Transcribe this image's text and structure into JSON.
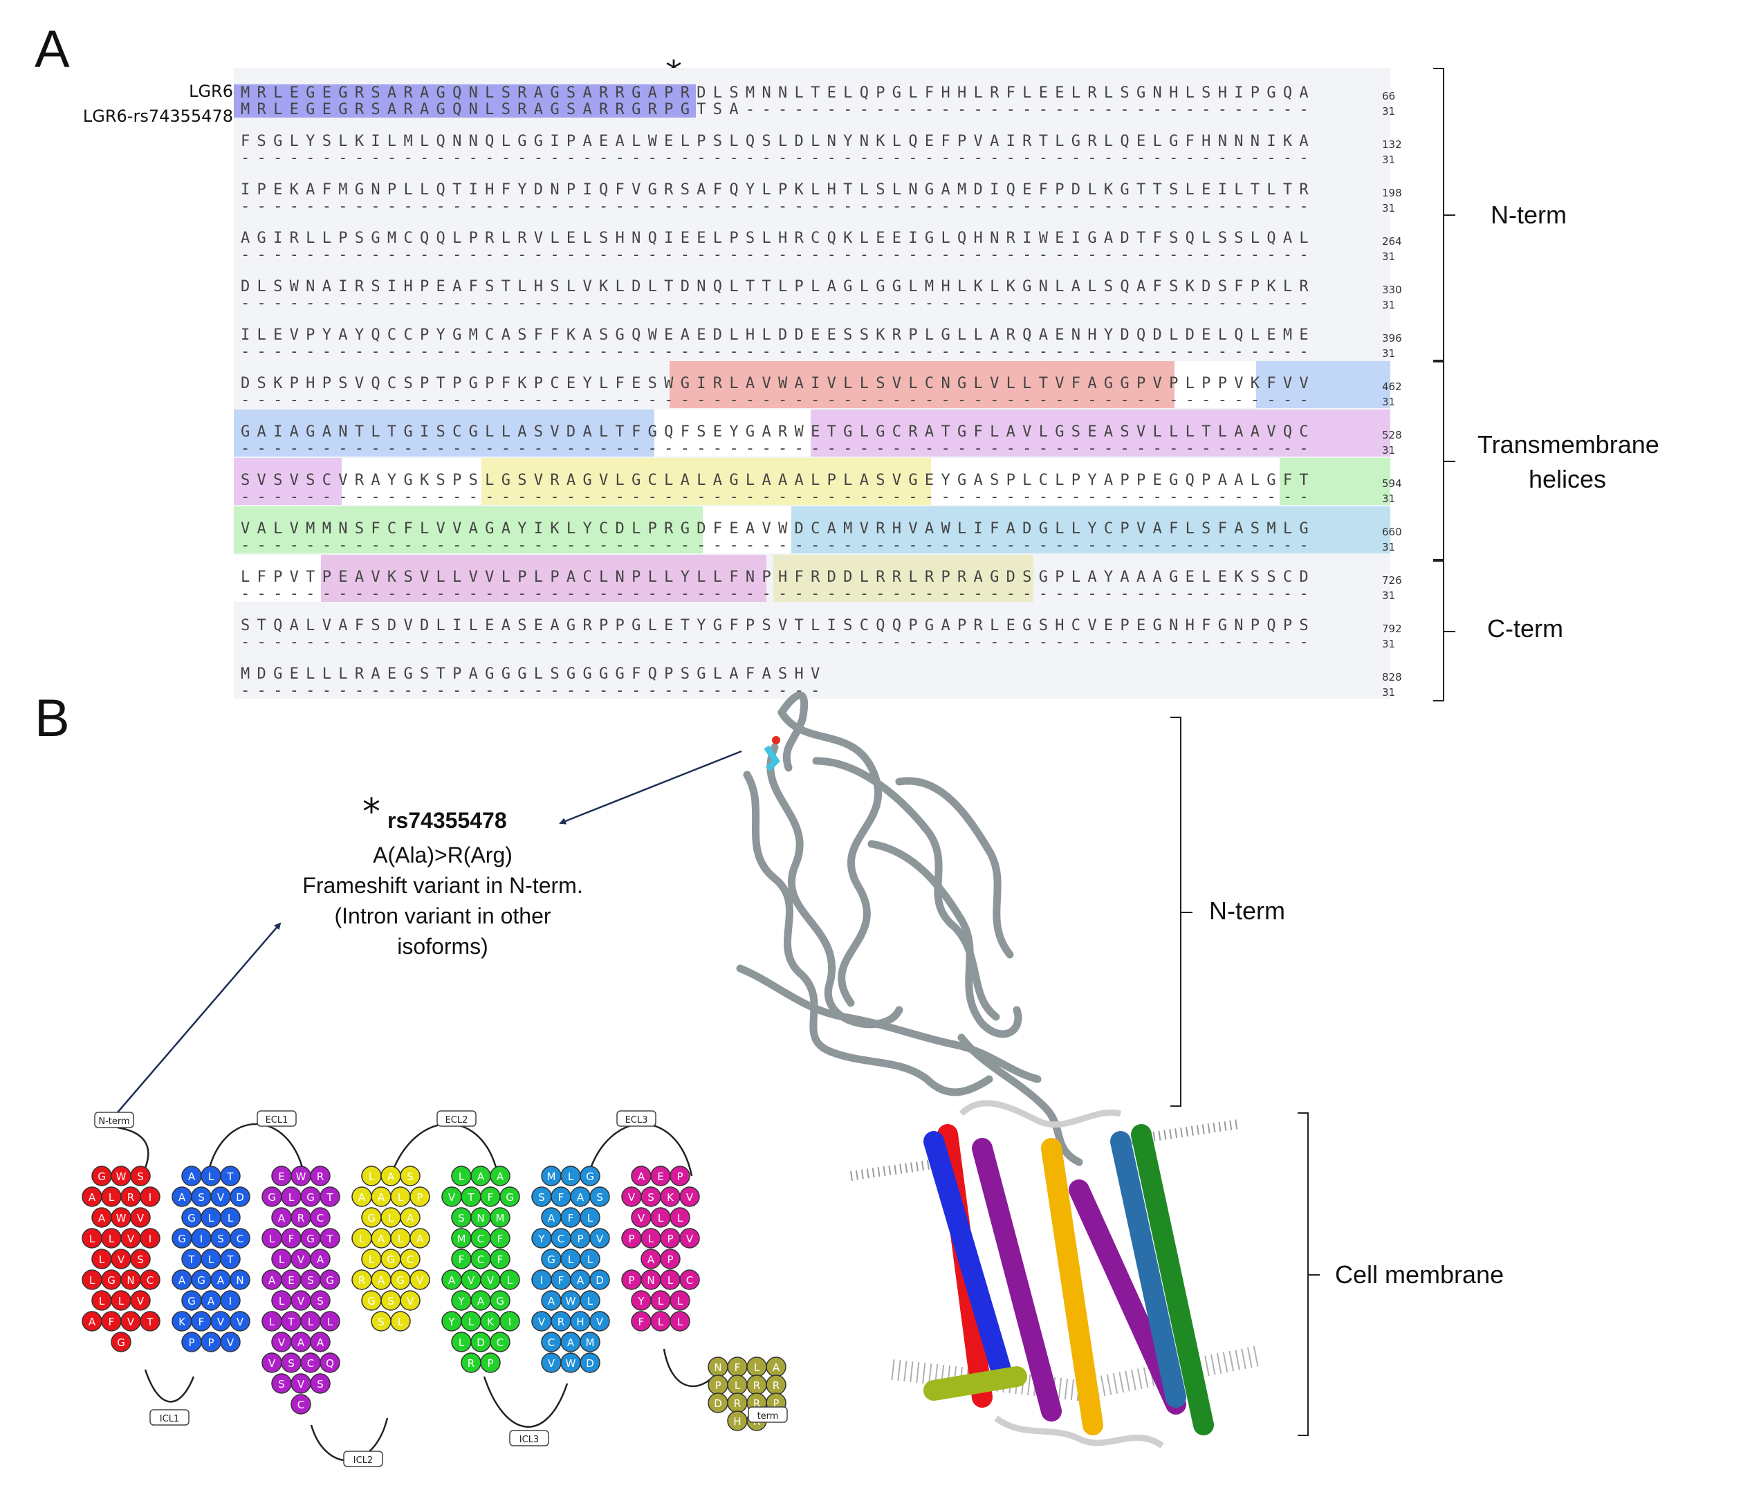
{
  "panels": {
    "a": "A",
    "b": "B"
  },
  "labels": {
    "seq1": "LGR6",
    "seq2": "LGR6-rs74355478",
    "star": "*",
    "nterm": "N-term",
    "tm": "Transmembrane",
    "tm2": "helices",
    "cterm": "C-term",
    "nterm_b": "N-term",
    "membrane": "Cell membrane"
  },
  "alignment": [
    {
      "seq": "MRLEGEGRSARAGQNLSRAGSARRGAPRDLSMNNLTELQPGLFHHLRFLEELRLSGNHLSHIPGQA",
      "sub": "MRLEGEGRSARAGQNLSRAGSARRGRPGTSA-----------------------------------",
      "n1": "66",
      "n2": "31"
    },
    {
      "seq": "FSGLYSLKILMLQNNQLGGIPAEALWELPSLQSLDLNYNKLQEFPVAIRTLGRLQELGFHNNNIKA",
      "sub": "------------------------------------------------------------------",
      "n1": "132",
      "n2": "31"
    },
    {
      "seq": "IPEKAFMGNPLLQTIHFYDNPIQFVGRSAFQYLPKLHTLSLNGAMDIQEFPDLKGTTSLEILTLTR",
      "sub": "------------------------------------------------------------------",
      "n1": "198",
      "n2": "31"
    },
    {
      "seq": "AGIRLLPSGMCQQLPRLRVLELSHNQIEELPSLHRCQKLEEIGLQHNRIWEIGADTFSQLSSLQAL",
      "sub": "------------------------------------------------------------------",
      "n1": "264",
      "n2": "31"
    },
    {
      "seq": "DLSWNAIRSIHPEAFSTLHSLVKLDLTDNQLTTLPLAGLGGLMHLKLKGNLALSQAFSKDSFPKLR",
      "sub": "------------------------------------------------------------------",
      "n1": "330",
      "n2": "31"
    },
    {
      "seq": "ILEVPYAYQCCPYGMCASFFKASGQWEAEDLHLDDEESSKRPLGLLARQAENHYDQDLDELQLEME",
      "sub": "------------------------------------------------------------------",
      "n1": "396",
      "n2": "31"
    },
    {
      "seq": "DSKPHPSVQCSPTPGPFKPCEYLFESWGIRLAVWAIVLLSVLCNGLVLLTVFAGGPVPLPPVKFVV",
      "sub": "------------------------------------------------------------------",
      "n1": "462",
      "n2": "31"
    },
    {
      "seq": "GAIAGANTLTGISCGLLASVDALTFGQFSEYGARWETGLGCRATGFLAVLGSEASVLLLTLAAVQC",
      "sub": "------------------------------------------------------------------",
      "n1": "528",
      "n2": "31"
    },
    {
      "seq": "SVSVSCVRAYGKSPSLGSVRAGVLGCLALAGLAAALPLASVGEYGASPLCLPYAPPEGQPAALGFT",
      "sub": "------------------------------------------------------------------",
      "n1": "594",
      "n2": "31"
    },
    {
      "seq": "VALVMMNSFCFLVVAGAYIKLYCDLPRGDFEAVWDCAMVRHVAWLIFADGLLYCPVAFLSFASMLG",
      "sub": "------------------------------------------------------------------",
      "n1": "660",
      "n2": "31"
    },
    {
      "seq": "LFPVTPEAVKSVLLVVLPLPACLNPLLYLLFNPHFRDDLRRLRPRAGDSGPLAYAAAGELEKSSCD",
      "sub": "------------------------------------------------------------------",
      "n1": "726",
      "n2": "31"
    },
    {
      "seq": "STQALVAFSDVDLILEASEAGRPPGLETYGFPSVTLISCQQPGAPRLEGSHCVEPEGNHFGNPQPS",
      "sub": "------------------------------------------------------------------",
      "n1": "792",
      "n2": "31"
    },
    {
      "seq": "MDGELLLRAEGSTPAGGGLSGGGGFQPSGLAFASHV",
      "sub": "------------------------------------",
      "n1": "828",
      "n2": "31"
    }
  ],
  "snp": {
    "star": "*",
    "id": "rs74355478",
    "line1": "A(Ala)>R(Arg)",
    "line2": "Frameshift variant in N-term.",
    "line3": "(Intron variant in other",
    "line4": "isoforms)"
  },
  "snake": {
    "nterm": "N-term",
    "ecl": [
      "ECL1",
      "ECL2",
      "ECL3"
    ],
    "icl": [
      "ICL1",
      "ICL2",
      "ICL3"
    ],
    "cterm": "term",
    "helices": [
      {
        "color": "#e8141a",
        "rows": [
          "GWS",
          "ALRI",
          "AWV",
          "LLVI",
          "LVS",
          "LGNC",
          "LLV",
          "AFVT",
          "G"
        ]
      },
      {
        "color": "#1f5fe8",
        "rows": [
          "ALT",
          "ASVD",
          "GLL",
          "GISC",
          "TLT",
          "AGAN",
          "GAI",
          "KFVV",
          "PPV"
        ]
      },
      {
        "color": "#b020c8",
        "rows": [
          "EWR",
          "GLGT",
          "ARC",
          "LFGT",
          "LVA",
          "AESG",
          "LVS",
          "LTLL",
          "VAA",
          "VSCQ",
          "SVS",
          "C"
        ]
      },
      {
        "color": "#e8e010",
        "rows": [
          "LAS",
          "AALP",
          "GLA",
          "LALA",
          "LGC",
          "RAGV",
          "GSV",
          "SL"
        ]
      },
      {
        "color": "#22d22a",
        "rows": [
          "LAA",
          "VTFG",
          "SNM",
          "MCF",
          "FCF",
          "AVVL",
          "YAG",
          "YLKI",
          "LDC",
          "RP"
        ]
      },
      {
        "color": "#1e8fd8",
        "rows": [
          "MLG",
          "SFAS",
          "AFL",
          "YCPV",
          "GLL",
          "IFAD",
          "AWL",
          "VRHV",
          "CAM",
          "VWD"
        ]
      },
      {
        "color": "#d81a9a",
        "rows": [
          "AEP",
          "VSKV",
          "VLL",
          "PLPV",
          "AP",
          "PNLC",
          "YLL",
          "FLL"
        ]
      },
      {
        "color": "#a8a63a",
        "rows": [
          "NFLA",
          "PLRR",
          "DRRP",
          "HR"
        ]
      }
    ]
  }
}
